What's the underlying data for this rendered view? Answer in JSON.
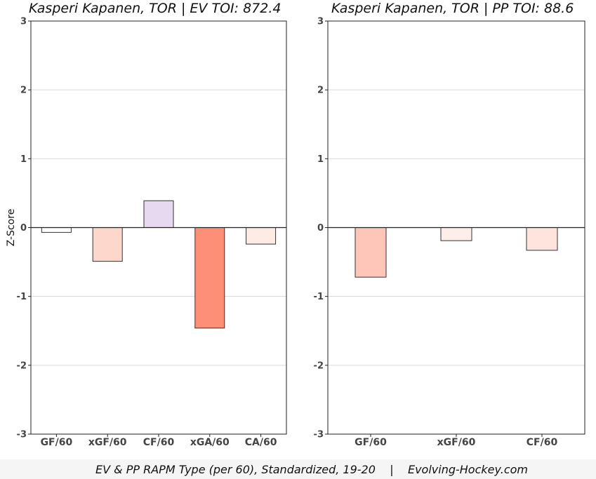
{
  "footer": "EV & PP RAPM Type (per 60), Standardized, 19-20    |    Evolving-Hockey.com",
  "chart_data": [
    {
      "type": "bar",
      "title": "Kasperi Kapanen, TOR  |  EV TOI: 872.4",
      "ylabel": "Z-Score",
      "ylim": [
        -3,
        3
      ],
      "yticks": [
        -3,
        -2,
        -1,
        0,
        1,
        2,
        3
      ],
      "grid": true,
      "categories": [
        "GF/60",
        "xGF/60",
        "CF/60",
        "xGA/60",
        "CA/60"
      ],
      "values": [
        -0.07,
        -0.49,
        0.39,
        -1.46,
        -0.24
      ],
      "colors": [
        "#ffffff",
        "#fdd7cb",
        "#e6d9f0",
        "#fe8f77",
        "#feebe4"
      ]
    },
    {
      "type": "bar",
      "title": "Kasperi Kapanen, TOR  |  PP TOI: 88.6",
      "ylabel": "",
      "ylim": [
        -3,
        3
      ],
      "yticks": [
        -3,
        -2,
        -1,
        0,
        1,
        2,
        3
      ],
      "grid": true,
      "categories": [
        "GF/60",
        "xGF/60",
        "CF/60"
      ],
      "values": [
        -0.72,
        -0.19,
        -0.33
      ],
      "colors": [
        "#fec6b8",
        "#feeeea",
        "#fee4dd"
      ]
    }
  ]
}
